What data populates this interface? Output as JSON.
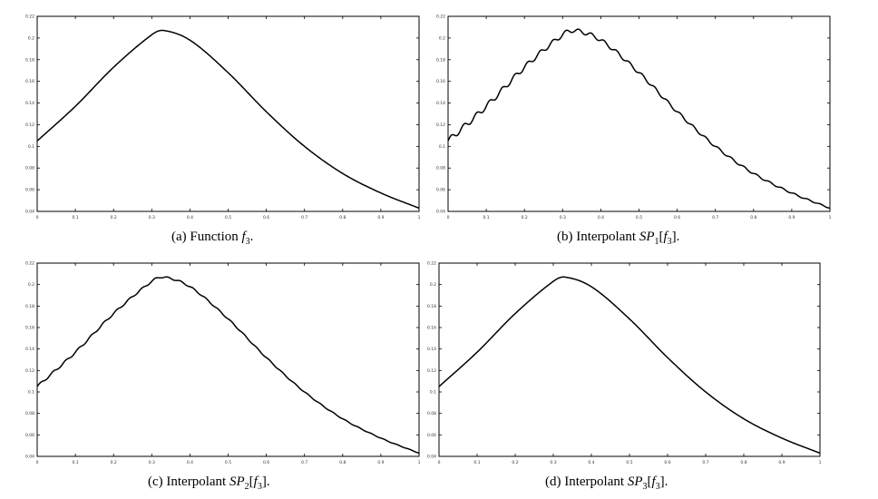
{
  "chart_data": [
    {
      "type": "line",
      "caption": {
        "prefix": "(a) Function ",
        "fn": "f",
        "fn_sub": "3",
        "suffix": "."
      },
      "xlim": [
        0,
        1
      ],
      "ylim": [
        0.04,
        0.22
      ],
      "xticks": [
        "0",
        "0.1",
        "0.2",
        "0.3",
        "0.4",
        "0.5",
        "0.6",
        "0.7",
        "0.8",
        "0.9",
        "1"
      ],
      "yticks": [
        "0.04",
        "0.06",
        "0.08",
        "0.1",
        "0.12",
        "0.14",
        "0.16",
        "0.18",
        "0.2",
        "0.22"
      ],
      "series": [
        {
          "x": [
            0,
            0.1,
            0.2,
            0.3,
            0.33,
            0.4,
            0.5,
            0.6,
            0.7,
            0.8,
            0.9,
            1
          ],
          "y": [
            0.105,
            0.137,
            0.173,
            0.203,
            0.207,
            0.198,
            0.168,
            0.132,
            0.1,
            0.075,
            0.057,
            0.043
          ]
        }
      ],
      "ripple": 0
    },
    {
      "type": "line",
      "caption": {
        "prefix": "(b) Interpolant ",
        "op": "SP",
        "op_sub": "1",
        "fn": "f",
        "fn_sub": "3",
        "suffix": "."
      },
      "xlim": [
        0,
        1
      ],
      "ylim": [
        0.04,
        0.22
      ],
      "xticks": [
        "0",
        "0.1",
        "0.2",
        "0.3",
        "0.4",
        "0.5",
        "0.6",
        "0.7",
        "0.8",
        "0.9",
        "1"
      ],
      "yticks": [
        "0.04",
        "0.06",
        "0.08",
        "0.1",
        "0.12",
        "0.14",
        "0.16",
        "0.18",
        "0.2",
        "0.22"
      ],
      "series": [
        {
          "x": [
            0,
            0.1,
            0.2,
            0.3,
            0.33,
            0.4,
            0.5,
            0.6,
            0.7,
            0.8,
            0.9,
            1
          ],
          "y": [
            0.105,
            0.137,
            0.173,
            0.203,
            0.207,
            0.198,
            0.168,
            0.132,
            0.1,
            0.075,
            0.057,
            0.043
          ]
        }
      ],
      "ripple": 0.0022
    },
    {
      "type": "line",
      "caption": {
        "prefix": "(c) Interpolant ",
        "op": "SP",
        "op_sub": "2",
        "fn": "f",
        "fn_sub": "3",
        "suffix": "."
      },
      "xlim": [
        0,
        1
      ],
      "ylim": [
        0.04,
        0.22
      ],
      "xticks": [
        "0",
        "0.1",
        "0.2",
        "0.3",
        "0.4",
        "0.5",
        "0.6",
        "0.7",
        "0.8",
        "0.9",
        "1"
      ],
      "yticks": [
        "0.04",
        "0.06",
        "0.08",
        "0.1",
        "0.12",
        "0.14",
        "0.16",
        "0.18",
        "0.2",
        "0.22"
      ],
      "series": [
        {
          "x": [
            0,
            0.1,
            0.2,
            0.3,
            0.33,
            0.4,
            0.5,
            0.6,
            0.7,
            0.8,
            0.9,
            1
          ],
          "y": [
            0.105,
            0.137,
            0.173,
            0.203,
            0.207,
            0.198,
            0.168,
            0.132,
            0.1,
            0.075,
            0.057,
            0.043
          ]
        }
      ],
      "ripple": 0.0009
    },
    {
      "type": "line",
      "caption": {
        "prefix": "(d) Interpolant ",
        "op": "SP",
        "op_sub": "3",
        "fn": "f",
        "fn_sub": "3",
        "suffix": "."
      },
      "xlim": [
        0,
        1
      ],
      "ylim": [
        0.04,
        0.22
      ],
      "xticks": [
        "0",
        "0.1",
        "0.2",
        "0.3",
        "0.4",
        "0.5",
        "0.6",
        "0.7",
        "0.8",
        "0.9",
        "1"
      ],
      "yticks": [
        "0.04",
        "0.06",
        "0.08",
        "0.1",
        "0.12",
        "0.14",
        "0.16",
        "0.18",
        "0.2",
        "0.22"
      ],
      "series": [
        {
          "x": [
            0,
            0.1,
            0.2,
            0.3,
            0.33,
            0.4,
            0.5,
            0.6,
            0.7,
            0.8,
            0.9,
            1
          ],
          "y": [
            0.105,
            0.137,
            0.173,
            0.203,
            0.207,
            0.198,
            0.168,
            0.132,
            0.1,
            0.075,
            0.057,
            0.043
          ]
        }
      ],
      "ripple": 0
    }
  ]
}
